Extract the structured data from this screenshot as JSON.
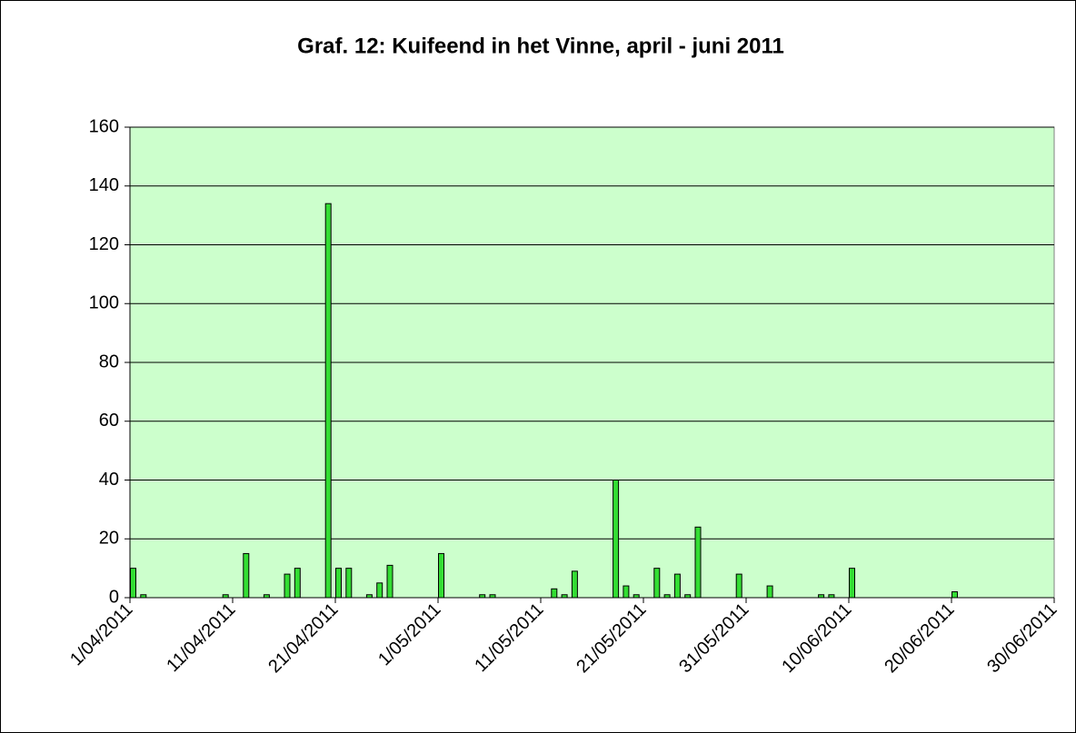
{
  "chart_data": {
    "type": "bar",
    "title": "Graf. 12: Kuifeend in het Vinne, april - juni 2011",
    "x": [
      "1/04/2011",
      "2/04/2011",
      "10/04/2011",
      "12/04/2011",
      "14/04/2011",
      "16/04/2011",
      "17/04/2011",
      "20/04/2011",
      "21/04/2011",
      "22/04/2011",
      "24/04/2011",
      "25/04/2011",
      "26/04/2011",
      "1/05/2011",
      "5/05/2011",
      "6/05/2011",
      "12/05/2011",
      "13/05/2011",
      "14/05/2011",
      "18/05/2011",
      "19/05/2011",
      "20/05/2011",
      "22/05/2011",
      "23/05/2011",
      "24/05/2011",
      "25/05/2011",
      "26/05/2011",
      "30/05/2011",
      "2/06/2011",
      "7/06/2011",
      "8/06/2011",
      "10/06/2011",
      "20/06/2011"
    ],
    "values": [
      10,
      1,
      1,
      15,
      1,
      8,
      10,
      134,
      10,
      10,
      1,
      5,
      11,
      15,
      1,
      1,
      3,
      1,
      9,
      40,
      4,
      1,
      10,
      1,
      8,
      1,
      24,
      8,
      4,
      1,
      1,
      10,
      2
    ],
    "color": "#33dd33",
    "plot_background": "#ccffcc",
    "xlim": [
      "1/04/2011",
      "30/06/2011"
    ],
    "xticks": [
      "1/04/2011",
      "11/04/2011",
      "21/04/2011",
      "1/05/2011",
      "11/05/2011",
      "21/05/2011",
      "31/05/2011",
      "10/06/2011",
      "20/06/2011",
      "30/06/2011"
    ],
    "ylim": [
      0,
      160
    ],
    "yticks": [
      0,
      20,
      40,
      60,
      80,
      100,
      120,
      140,
      160
    ],
    "grid": true
  }
}
